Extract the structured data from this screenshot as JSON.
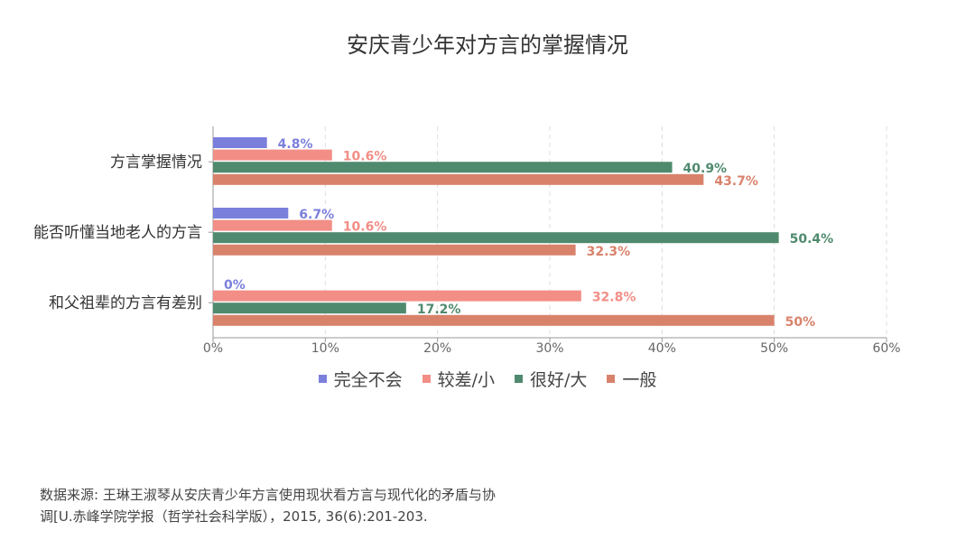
{
  "chart_data": {
    "type": "bar",
    "orientation": "horizontal",
    "title": "安庆青少年对方言的掌握情况",
    "categories": [
      "方言掌握情况",
      "能否听懂当地老人的方言",
      "和父祖辈的方言有差别"
    ],
    "series": [
      {
        "name": "完全不会",
        "color": "#7b7fdc",
        "values": [
          4.8,
          6.7,
          0
        ],
        "labels": [
          "4.8%",
          "6.7%",
          "0%"
        ]
      },
      {
        "name": "较差/小",
        "color": "#f28e86",
        "values": [
          10.6,
          10.6,
          32.8
        ],
        "labels": [
          "10.6%",
          "10.6%",
          "32.8%"
        ]
      },
      {
        "name": "很好/大",
        "color": "#4f8a6e",
        "values": [
          40.9,
          50.4,
          17.2
        ],
        "labels": [
          "40.9%",
          "50.4%",
          "17.2%"
        ]
      },
      {
        "name": "一般",
        "color": "#d9826b",
        "values": [
          43.7,
          32.3,
          50
        ],
        "labels": [
          "43.7%",
          "32.3%",
          "50%"
        ]
      }
    ],
    "xlim": [
      0,
      60
    ],
    "xticks": [
      "0%",
      "10%",
      "20%",
      "30%",
      "40%",
      "50%",
      "60%"
    ],
    "grid": true,
    "legend": "bottom"
  },
  "source": {
    "line1": "数据来源: 王琳王淑琴从安庆青少年方言使用现状看方言与现代化的矛盾与协",
    "line2": "调[U.赤峰学院学报（哲学社会科学版），2015, 36(6):201-203."
  }
}
